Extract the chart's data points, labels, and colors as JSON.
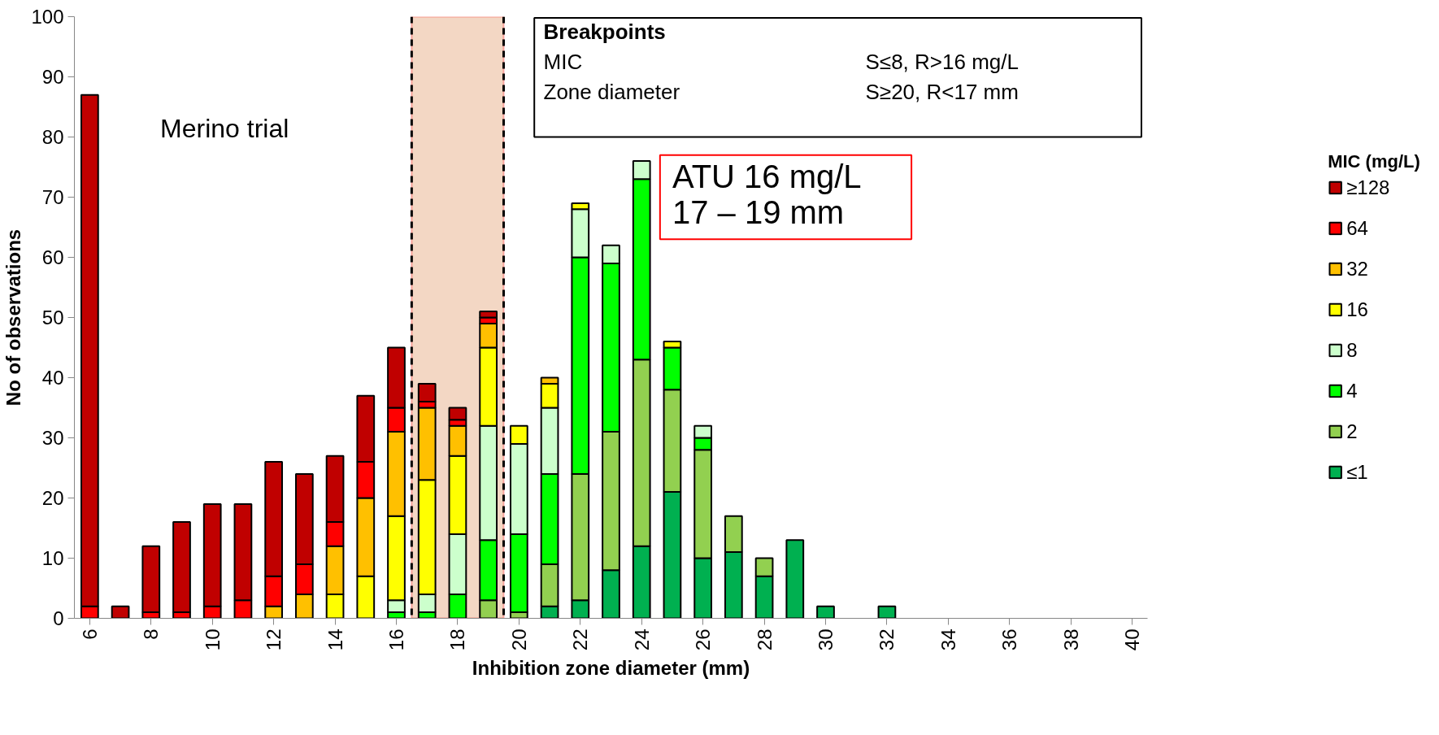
{
  "chart_data": {
    "type": "bar",
    "stacked": true,
    "xlabel": "Inhibition zone diameter (mm)",
    "ylabel": "No of observations",
    "legend_title": "MIC (mg/L)",
    "x": [
      6,
      7,
      8,
      9,
      10,
      11,
      12,
      13,
      14,
      15,
      16,
      17,
      18,
      19,
      20,
      21,
      22,
      23,
      24,
      25,
      26,
      27,
      28,
      29,
      30,
      31,
      32
    ],
    "xlim": [
      5.5,
      40.5
    ],
    "xticks": [
      6,
      8,
      10,
      12,
      14,
      16,
      18,
      20,
      22,
      24,
      26,
      28,
      30,
      32,
      34,
      36,
      38,
      40
    ],
    "ylim": [
      0,
      100
    ],
    "yticks": [
      0,
      10,
      20,
      30,
      40,
      50,
      60,
      70,
      80,
      90,
      100
    ],
    "series": [
      {
        "name": "≤1",
        "color": "#00b050",
        "values": [
          null,
          null,
          null,
          null,
          null,
          null,
          null,
          null,
          null,
          null,
          null,
          null,
          null,
          null,
          null,
          2,
          3,
          8,
          12,
          21,
          10,
          11,
          7,
          13,
          2,
          null,
          2
        ]
      },
      {
        "name": "2",
        "color": "#92d050",
        "values": [
          null,
          null,
          null,
          null,
          null,
          null,
          null,
          null,
          null,
          null,
          null,
          null,
          null,
          3,
          1,
          7,
          21,
          23,
          31,
          17,
          18,
          6,
          3,
          null,
          null,
          null,
          null
        ]
      },
      {
        "name": "4",
        "color": "#00ff00",
        "values": [
          null,
          null,
          null,
          null,
          null,
          null,
          null,
          null,
          null,
          null,
          1,
          1,
          4,
          10,
          13,
          15,
          36,
          28,
          30,
          7,
          2,
          null,
          null,
          null,
          null,
          null,
          null
        ]
      },
      {
        "name": "8",
        "color": "#ccffcc",
        "values": [
          null,
          null,
          null,
          null,
          null,
          null,
          null,
          null,
          null,
          null,
          2,
          3,
          10,
          19,
          15,
          11,
          8,
          3,
          3,
          null,
          2,
          null,
          null,
          null,
          null,
          null,
          null
        ]
      },
      {
        "name": "16",
        "color": "#ffff00",
        "values": [
          null,
          null,
          null,
          null,
          null,
          null,
          null,
          null,
          4,
          7,
          14,
          19,
          13,
          13,
          3,
          4,
          1,
          null,
          null,
          1,
          null,
          null,
          null,
          null,
          null,
          null,
          null
        ]
      },
      {
        "name": "32",
        "color": "#ffc000",
        "values": [
          null,
          null,
          null,
          null,
          null,
          null,
          2,
          4,
          8,
          13,
          14,
          12,
          5,
          4,
          null,
          1,
          null,
          null,
          null,
          null,
          null,
          null,
          null,
          null,
          null,
          null,
          null
        ]
      },
      {
        "name": "64",
        "color": "#ff0000",
        "values": [
          2,
          null,
          1,
          1,
          2,
          3,
          5,
          5,
          4,
          6,
          4,
          1,
          1,
          1,
          null,
          null,
          null,
          null,
          null,
          null,
          null,
          null,
          null,
          null,
          null,
          null,
          null
        ]
      },
      {
        "name": "≥128",
        "color": "#c00000",
        "values": [
          85,
          2,
          11,
          15,
          17,
          16,
          19,
          15,
          11,
          11,
          10,
          3,
          2,
          1,
          null,
          null,
          null,
          null,
          null,
          null,
          null,
          null,
          null,
          null,
          null,
          null,
          null
        ]
      }
    ],
    "ref_lines": [
      {
        "axis": "x",
        "value": 16.5,
        "color": "#000000",
        "line_style": "dashed"
      },
      {
        "axis": "x",
        "value": 19.5,
        "color": "#000000",
        "line_style": "dashed"
      }
    ],
    "bands": [
      {
        "axis": "x",
        "from": 16.5,
        "to": 19.5,
        "color": "#f0cdb5"
      }
    ],
    "annotations": [
      "Merino trial",
      "Breakpoints",
      "MIC",
      "S≤8, R>16 mg/L",
      "Zone diameter",
      "S≥20, R<17 mm",
      "ATU 16 mg/L",
      "17 – 19 mm"
    ],
    "legend": "right",
    "grid": false
  }
}
